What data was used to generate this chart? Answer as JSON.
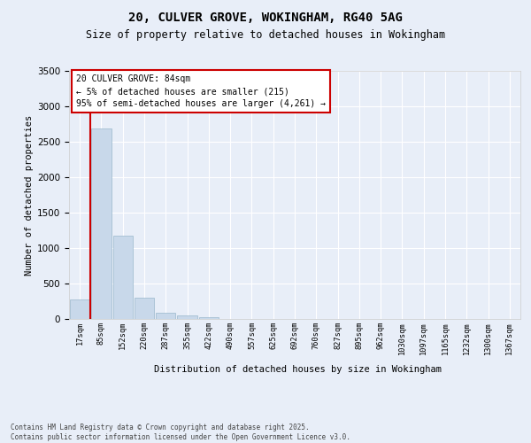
{
  "title": "20, CULVER GROVE, WOKINGHAM, RG40 5AG",
  "subtitle": "Size of property relative to detached houses in Wokingham",
  "xlabel": "Distribution of detached houses by size in Wokingham",
  "ylabel": "Number of detached properties",
  "bin_labels": [
    "17sqm",
    "85sqm",
    "152sqm",
    "220sqm",
    "287sqm",
    "355sqm",
    "422sqm",
    "490sqm",
    "557sqm",
    "625sqm",
    "692sqm",
    "760sqm",
    "827sqm",
    "895sqm",
    "962sqm",
    "1030sqm",
    "1097sqm",
    "1165sqm",
    "1232sqm",
    "1300sqm",
    "1367sqm"
  ],
  "values": [
    270,
    2690,
    1180,
    295,
    90,
    45,
    30,
    5,
    2,
    1,
    1,
    0,
    0,
    0,
    0,
    0,
    0,
    0,
    0,
    0,
    0
  ],
  "bar_color": "#c8d8ea",
  "bar_edge_color": "#9ab8cc",
  "vline_color": "#cc0000",
  "vline_x": 0.5,
  "annotation_text": "20 CULVER GROVE: 84sqm\n← 5% of detached houses are smaller (215)\n95% of semi-detached houses are larger (4,261) →",
  "annotation_face_color": "#ffffff",
  "annotation_edge_color": "#cc0000",
  "ylim": [
    0,
    3500
  ],
  "yticks": [
    0,
    500,
    1000,
    1500,
    2000,
    2500,
    3000,
    3500
  ],
  "background_color": "#e8eef8",
  "grid_color": "#ffffff",
  "footer": "Contains HM Land Registry data © Crown copyright and database right 2025.\nContains public sector information licensed under the Open Government Licence v3.0."
}
